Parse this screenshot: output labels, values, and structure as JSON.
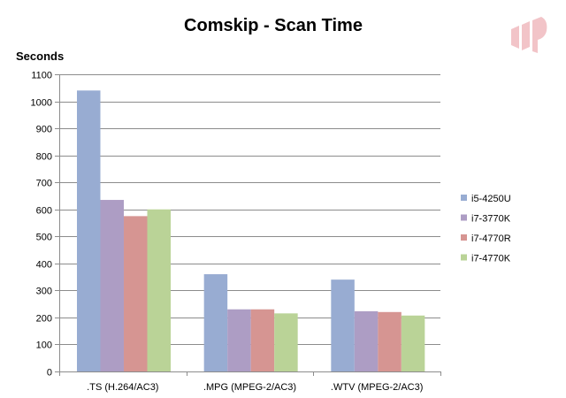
{
  "chart_data": {
    "type": "bar",
    "title": "Comskip - Scan Time",
    "xlabel": "",
    "ylabel": "Seconds",
    "ylim": [
      0,
      1100
    ],
    "yticks": [
      0,
      100,
      200,
      300,
      400,
      500,
      600,
      700,
      800,
      900,
      1000,
      1100
    ],
    "grid": true,
    "legend_position": "right",
    "categories": [
      ".TS (H.264/AC3)",
      ".MPG (MPEG-2/AC3)",
      ".WTV (MPEG-2/AC3)"
    ],
    "series": [
      {
        "name": "i5-4250U",
        "color": "#98acd2",
        "values": [
          1040,
          360,
          340
        ]
      },
      {
        "name": "i7-3770K",
        "color": "#ad9dc4",
        "values": [
          635,
          230,
          223
        ]
      },
      {
        "name": "i7-4770R",
        "color": "#d69592",
        "values": [
          575,
          230,
          220
        ]
      },
      {
        "name": "i7-4770K",
        "color": "#bad397",
        "values": [
          600,
          215,
          207
        ]
      }
    ]
  },
  "logo": {
    "icon": "brand-logo-icon",
    "color": "#f2c4c8"
  }
}
